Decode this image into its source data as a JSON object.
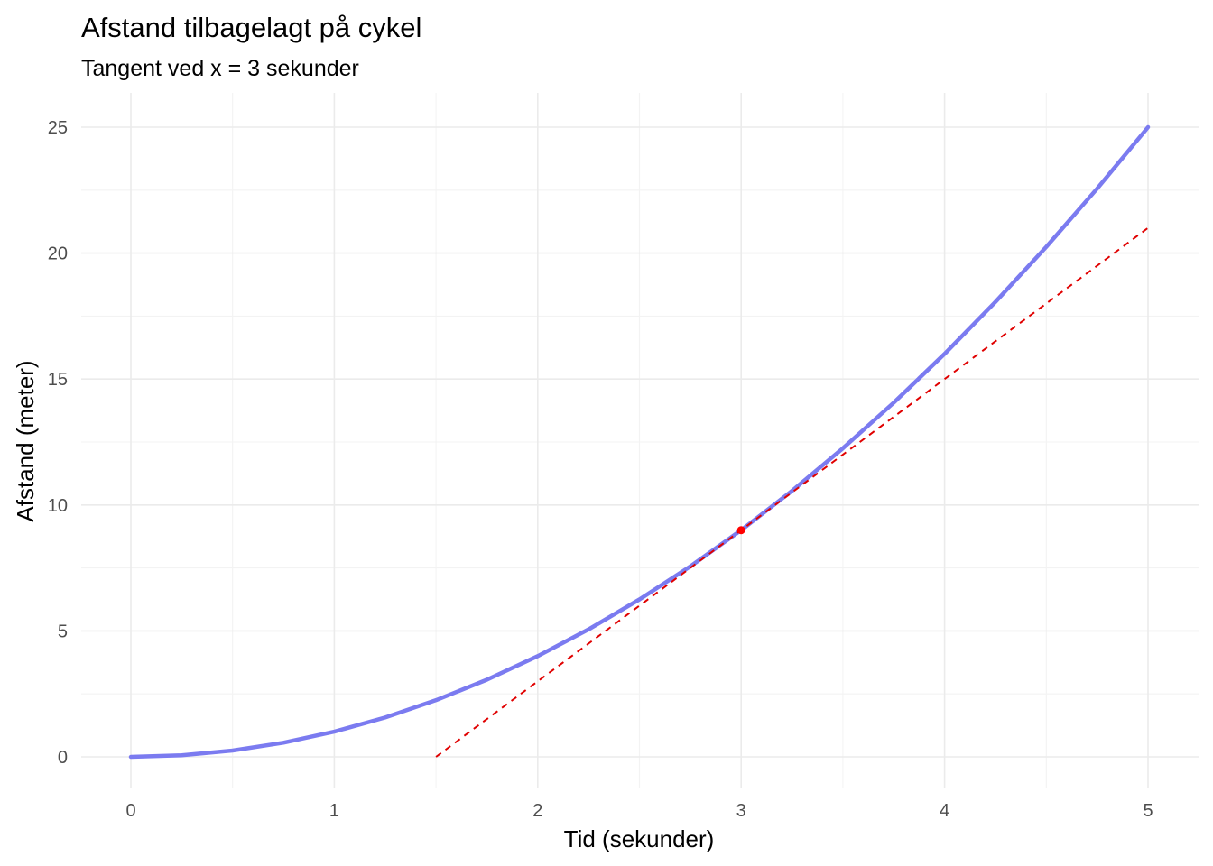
{
  "chart_data": {
    "type": "line",
    "title": "Afstand tilbagelagt på cykel",
    "subtitle": "Tangent ved x = 3 sekunder",
    "xlabel": "Tid (sekunder)",
    "ylabel": "Afstand (meter)",
    "xlim": [
      0,
      5
    ],
    "ylim": [
      0,
      25
    ],
    "x_ticks": [
      0,
      1,
      2,
      3,
      4,
      5
    ],
    "y_ticks": [
      0,
      5,
      10,
      15,
      20,
      25
    ],
    "grid": true,
    "legend": "none",
    "series": [
      {
        "x": [
          0,
          0.25,
          0.5,
          0.75,
          1,
          1.25,
          1.5,
          1.75,
          2,
          2.25,
          2.5,
          2.75,
          3,
          3.25,
          3.5,
          3.75,
          4,
          4.25,
          4.5,
          4.75,
          5
        ],
        "y": [
          0,
          0.0625,
          0.25,
          0.5625,
          1,
          1.5625,
          2.25,
          3.0625,
          4,
          5.0625,
          6.25,
          7.5625,
          9,
          10.5625,
          12.25,
          14.0625,
          16,
          18.0625,
          20.25,
          22.5625,
          25
        ],
        "color": "#7b7bf0",
        "style": "solid"
      },
      {
        "x": [
          1.5,
          5
        ],
        "y": [
          0,
          21
        ],
        "color": "#e00000",
        "style": "dashed"
      }
    ],
    "points": [
      {
        "x": 3,
        "y": 9,
        "color": "#ff0000"
      }
    ]
  }
}
